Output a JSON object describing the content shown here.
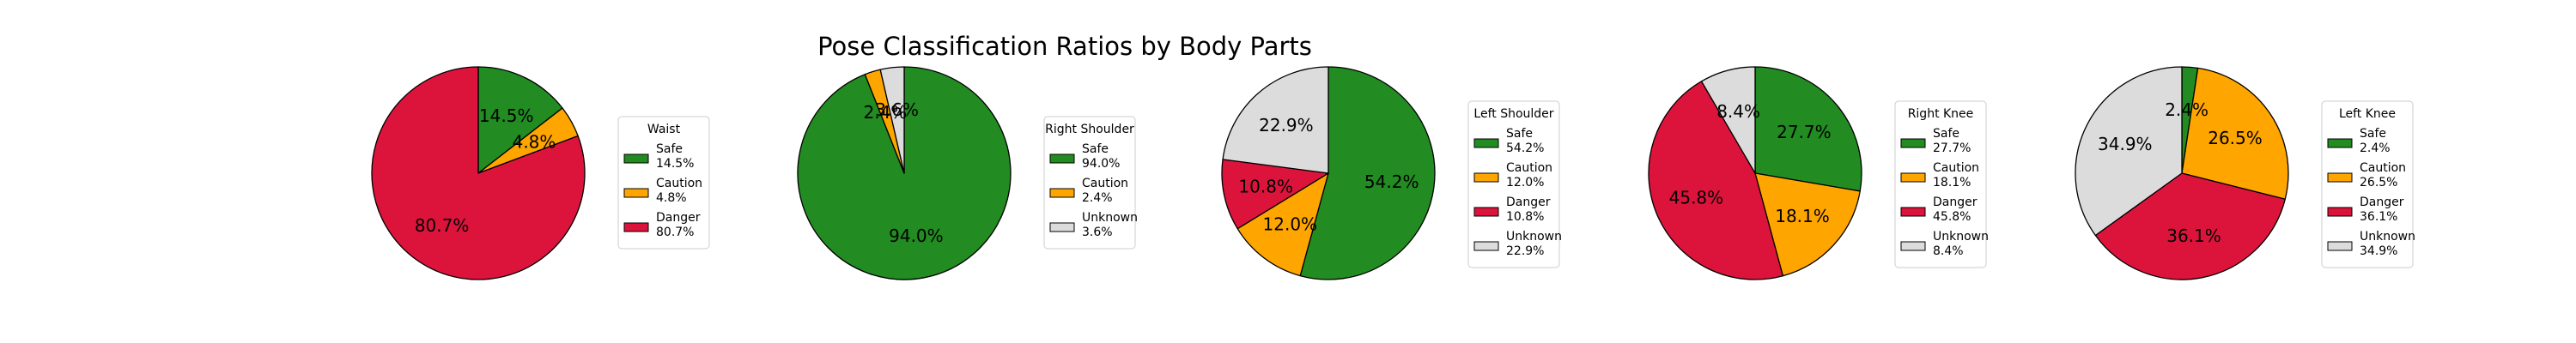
{
  "chart_data": {
    "type": "pie",
    "title": "Pose Classification Ratios by Body Parts",
    "colors": {
      "Safe": "#228b22",
      "Caution": "#ffa500",
      "Danger": "#dc143c",
      "Unknown": "#dcdcdc"
    },
    "start_angle_deg": 90,
    "direction": "clockwise",
    "legend_placement": "center-right",
    "charts": [
      {
        "legend_title": "Waist",
        "slices": [
          {
            "category": "Safe",
            "value": 14.5,
            "label": "14.5%",
            "legend": "Safe\n14.5%"
          },
          {
            "category": "Caution",
            "value": 4.8,
            "label": "4.8%",
            "legend": "Caution\n4.8%"
          },
          {
            "category": "Danger",
            "value": 80.7,
            "label": "80.7%",
            "legend": "Danger\n80.7%"
          }
        ]
      },
      {
        "legend_title": "Right Shoulder",
        "slices": [
          {
            "category": "Safe",
            "value": 94.0,
            "label": "94.0%",
            "legend": "Safe\n94.0%"
          },
          {
            "category": "Caution",
            "value": 2.4,
            "label": "2.4%",
            "legend": "Caution\n2.4%"
          },
          {
            "category": "Unknown",
            "value": 3.6,
            "label": "3.6%",
            "legend": "Unknown\n3.6%"
          }
        ]
      },
      {
        "legend_title": "Left Shoulder",
        "slices": [
          {
            "category": "Safe",
            "value": 54.2,
            "label": "54.2%",
            "legend": "Safe\n54.2%"
          },
          {
            "category": "Caution",
            "value": 12.0,
            "label": "12.0%",
            "legend": "Caution\n12.0%"
          },
          {
            "category": "Danger",
            "value": 10.8,
            "label": "10.8%",
            "legend": "Danger\n10.8%"
          },
          {
            "category": "Unknown",
            "value": 22.9,
            "label": "22.9%",
            "legend": "Unknown\n22.9%"
          }
        ]
      },
      {
        "legend_title": "Right Knee",
        "slices": [
          {
            "category": "Safe",
            "value": 27.7,
            "label": "27.7%",
            "legend": "Safe\n27.7%"
          },
          {
            "category": "Caution",
            "value": 18.1,
            "label": "18.1%",
            "legend": "Caution\n18.1%"
          },
          {
            "category": "Danger",
            "value": 45.8,
            "label": "45.8%",
            "legend": "Danger\n45.8%"
          },
          {
            "category": "Unknown",
            "value": 8.4,
            "label": "8.4%",
            "legend": "Unknown\n8.4%"
          }
        ]
      },
      {
        "legend_title": "Left Knee",
        "slices": [
          {
            "category": "Safe",
            "value": 2.4,
            "label": "2.4%",
            "legend": "Safe\n2.4%"
          },
          {
            "category": "Caution",
            "value": 26.5,
            "label": "26.5%",
            "legend": "Caution\n26.5%"
          },
          {
            "category": "Danger",
            "value": 36.1,
            "label": "36.1%",
            "legend": "Danger\n36.1%"
          },
          {
            "category": "Unknown",
            "value": 34.9,
            "label": "34.9%",
            "legend": "Unknown\n34.9%"
          }
        ]
      }
    ]
  }
}
